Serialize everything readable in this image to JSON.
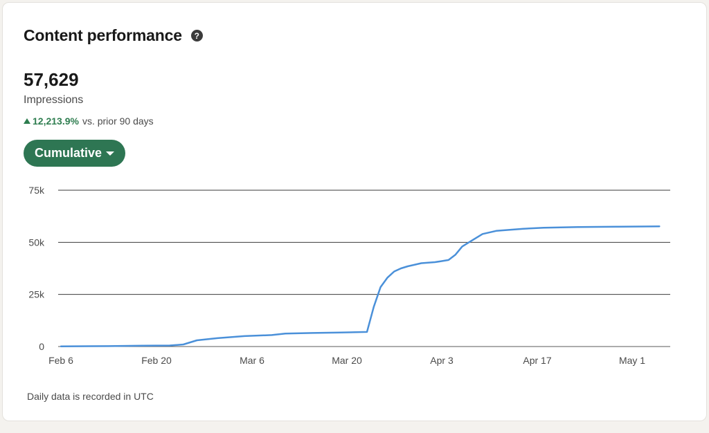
{
  "header": {
    "title": "Content performance",
    "help_icon": "question-circle-icon"
  },
  "metric": {
    "value": "57,629",
    "label": "Impressions",
    "change_value": "12,213.9%",
    "change_text": "vs. prior 90 days",
    "change_color": "#2e7d4f"
  },
  "dropdown": {
    "label": "Cumulative",
    "color": "#2e7653"
  },
  "footnote": "Daily data is recorded in UTC",
  "chart_data": {
    "type": "line",
    "title": "",
    "xlabel": "",
    "ylabel": "",
    "ylim": [
      0,
      75000
    ],
    "yticks": [
      0,
      25000,
      50000,
      75000
    ],
    "ytick_labels": [
      "0",
      "25k",
      "50k",
      "75k"
    ],
    "xticks": [
      "2024-02-06",
      "2024-02-20",
      "2024-03-06",
      "2024-03-20",
      "2024-04-03",
      "2024-04-17",
      "2024-05-01"
    ],
    "xtick_labels": [
      "Feb 6",
      "Feb 20",
      "Mar 6",
      "Mar 20",
      "Apr 3",
      "Apr 17",
      "May 1"
    ],
    "grid": true,
    "line_color": "#4a90d9",
    "series": [
      {
        "x": [
          "2024-02-06",
          "2024-02-13",
          "2024-02-18",
          "2024-02-22",
          "2024-02-24",
          "2024-02-26",
          "2024-02-29",
          "2024-03-04",
          "2024-03-08",
          "2024-03-10",
          "2024-03-14",
          "2024-03-18",
          "2024-03-22",
          "2024-03-23",
          "2024-03-24",
          "2024-03-25",
          "2024-03-26",
          "2024-03-27",
          "2024-03-28",
          "2024-03-30",
          "2024-04-01",
          "2024-04-02",
          "2024-04-03",
          "2024-04-04",
          "2024-04-05",
          "2024-04-06",
          "2024-04-08",
          "2024-04-10",
          "2024-04-14",
          "2024-04-17",
          "2024-04-22",
          "2024-04-28",
          "2024-05-04"
        ],
        "values": [
          100,
          200,
          400,
          500,
          1000,
          3000,
          4000,
          5000,
          5500,
          6200,
          6500,
          6700,
          7000,
          19000,
          28500,
          33000,
          36000,
          37500,
          38500,
          40000,
          40500,
          41000,
          41500,
          44000,
          48000,
          50000,
          54000,
          55500,
          56500,
          57000,
          57300,
          57500,
          57629
        ]
      }
    ]
  }
}
